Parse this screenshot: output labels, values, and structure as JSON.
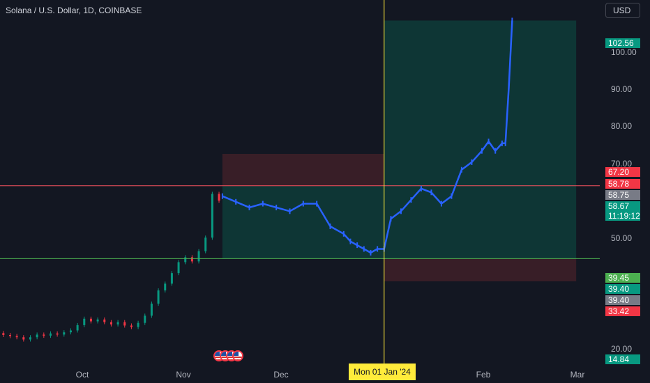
{
  "header": {
    "symbol_title": "Solana / U.S. Dollar, 1D, COINBASE",
    "currency": "USD"
  },
  "xaxis": {
    "labels": [
      "Oct",
      "Nov",
      "Dec",
      "Feb",
      "Mar"
    ],
    "crosshair_date": "Mon 01 Jan '24"
  },
  "yaxis": {
    "labels": [
      "100.00",
      "90.00",
      "80.00",
      "70.00",
      "50.00",
      "20.00"
    ]
  },
  "badges": {
    "b1": "102.56",
    "b2": "67.20",
    "b3": "58.78",
    "b4": "58.75",
    "b5": "58.67",
    "b6": "11:19:12",
    "b7": "39.45",
    "b8": "39.40",
    "b9": "39.40",
    "b10": "33.42",
    "b11": "14.84"
  },
  "colors": {
    "background": "#131722",
    "up": "#089981",
    "down": "#f23645",
    "line": "#2962ff",
    "crosshair": "#ffeb3b",
    "red_line": "#f7525f",
    "green_line": "#4caf50",
    "profit_zone": "#0e3a37",
    "loss_zone": "#3d1f28",
    "badge_gray": "#787b86"
  },
  "chart_data": {
    "type": "line",
    "title": "Solana / U.S. Dollar, 1D, COINBASE",
    "ylim": [
      12,
      108
    ],
    "x_range": [
      "2023-09-09",
      "2024-03-05"
    ],
    "candles": [
      {
        "x": "2023-09-10",
        "o": 19.7,
        "c": 19.2
      },
      {
        "x": "2023-09-12",
        "o": 19.2,
        "c": 18.9
      },
      {
        "x": "2023-09-14",
        "o": 18.9,
        "c": 18.6
      },
      {
        "x": "2023-09-16",
        "o": 18.6,
        "c": 18.0
      },
      {
        "x": "2023-09-18",
        "o": 18.0,
        "c": 18.6
      },
      {
        "x": "2023-09-20",
        "o": 18.6,
        "c": 19.3
      },
      {
        "x": "2023-09-22",
        "o": 19.3,
        "c": 19.0
      },
      {
        "x": "2023-09-24",
        "o": 19.0,
        "c": 19.6
      },
      {
        "x": "2023-09-26",
        "o": 19.6,
        "c": 19.3
      },
      {
        "x": "2023-09-28",
        "o": 19.3,
        "c": 19.9
      },
      {
        "x": "2023-09-30",
        "o": 19.9,
        "c": 20.4
      },
      {
        "x": "2023-10-02",
        "o": 20.4,
        "c": 21.8
      },
      {
        "x": "2023-10-04",
        "o": 21.8,
        "c": 23.5
      },
      {
        "x": "2023-10-06",
        "o": 23.5,
        "c": 22.8
      },
      {
        "x": "2023-10-08",
        "o": 22.8,
        "c": 23.3
      },
      {
        "x": "2023-10-10",
        "o": 23.3,
        "c": 22.6
      },
      {
        "x": "2023-10-12",
        "o": 22.6,
        "c": 22.0
      },
      {
        "x": "2023-10-14",
        "o": 22.0,
        "c": 22.6
      },
      {
        "x": "2023-10-16",
        "o": 22.6,
        "c": 21.7
      },
      {
        "x": "2023-10-18",
        "o": 21.7,
        "c": 21.3
      },
      {
        "x": "2023-10-20",
        "o": 21.3,
        "c": 22.4
      },
      {
        "x": "2023-10-22",
        "o": 22.4,
        "c": 24.3
      },
      {
        "x": "2023-10-24",
        "o": 24.3,
        "c": 27.5
      },
      {
        "x": "2023-10-26",
        "o": 27.5,
        "c": 31.0
      },
      {
        "x": "2023-10-28",
        "o": 31.0,
        "c": 32.8
      },
      {
        "x": "2023-10-30",
        "o": 32.8,
        "c": 35.6
      },
      {
        "x": "2023-11-01",
        "o": 35.6,
        "c": 38.5
      },
      {
        "x": "2023-11-03",
        "o": 38.5,
        "c": 39.8
      },
      {
        "x": "2023-11-05",
        "o": 39.8,
        "c": 38.7
      },
      {
        "x": "2023-11-07",
        "o": 38.7,
        "c": 41.4
      },
      {
        "x": "2023-11-09",
        "o": 41.4,
        "c": 45.0
      },
      {
        "x": "2023-11-11",
        "o": 45.0,
        "c": 56.6
      },
      {
        "x": "2023-11-13",
        "o": 56.6,
        "c": 54.8
      }
    ],
    "candle_colors": [
      "down",
      "down",
      "down",
      "down",
      "up",
      "up",
      "down",
      "up",
      "down",
      "up",
      "up",
      "up",
      "up",
      "down",
      "up",
      "down",
      "down",
      "up",
      "down",
      "down",
      "up",
      "up",
      "up",
      "up",
      "up",
      "up",
      "up",
      "up",
      "down",
      "up",
      "up",
      "up",
      "down"
    ],
    "series": [
      {
        "x": [
          "2023-11-14",
          "2023-11-18",
          "2023-11-22",
          "2023-11-26",
          "2023-11-30",
          "2023-12-04",
          "2023-12-08",
          "2023-12-12",
          "2023-12-16",
          "2023-12-20",
          "2023-12-22",
          "2023-12-24",
          "2023-12-26",
          "2023-12-28",
          "2023-12-30",
          "2024-01-01",
          "2024-01-03",
          "2024-01-06",
          "2024-01-09",
          "2024-01-12",
          "2024-01-15",
          "2024-01-18",
          "2024-01-21",
          "2024-01-24",
          "2024-01-27",
          "2024-01-30",
          "2024-02-01",
          "2024-02-03",
          "2024-02-05",
          "2024-02-06",
          "2024-02-07",
          "2024-02-08"
        ],
        "y": [
          56.0,
          54.5,
          53.0,
          54.0,
          53.0,
          52.0,
          54.0,
          54.0,
          48.0,
          46.0,
          44.0,
          43.0,
          42.0,
          41.0,
          42.0,
          42.0,
          50.0,
          52.0,
          55.0,
          58.0,
          57.0,
          54.0,
          56.0,
          63.0,
          65.0,
          68.0,
          70.5,
          68.0,
          70.0,
          70.0,
          85.0,
          102.56
        ]
      }
    ],
    "levels": {
      "red_line": 58.75,
      "green_line": 39.45
    },
    "zones": [
      {
        "type": "loss",
        "x0": "2023-11-14",
        "x1": "2024-01-01",
        "y0": 58.75,
        "y1": 67.2
      },
      {
        "type": "profit",
        "x0": "2023-11-14",
        "x1": "2024-01-01",
        "y0": 39.45,
        "y1": 58.75
      },
      {
        "type": "profit",
        "x0": "2024-01-01",
        "x1": "2024-02-27",
        "y0": 39.45,
        "y1": 102.56
      },
      {
        "type": "loss",
        "x0": "2024-01-01",
        "x1": "2024-02-27",
        "y0": 33.42,
        "y1": 39.45
      }
    ],
    "crosshair_x": "2024-01-01"
  }
}
